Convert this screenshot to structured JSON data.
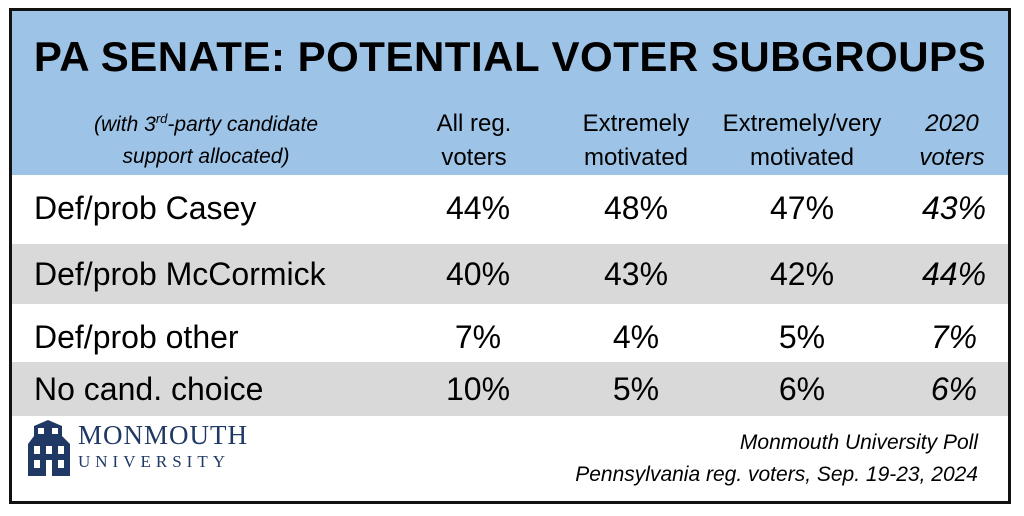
{
  "chart_data": {
    "type": "table",
    "title": "PA SENATE: POTENTIAL VOTER SUBGROUPS",
    "note": {
      "line1_pre": "(with 3",
      "line1_sup": "rd",
      "line1_post": "-party candidate",
      "line2": "support allocated)"
    },
    "columns": [
      {
        "line1": "All reg.",
        "line2": "voters"
      },
      {
        "line1": "Extremely",
        "line2": "motivated"
      },
      {
        "line1": "Extremely/very",
        "line2": "motivated"
      },
      {
        "line1": "2020",
        "line2": "voters"
      }
    ],
    "rows": [
      {
        "label": "Def/prob Casey",
        "values": [
          "44%",
          "48%",
          "47%",
          "43%"
        ]
      },
      {
        "label": "Def/prob McCormick",
        "values": [
          "40%",
          "43%",
          "42%",
          "44%"
        ]
      },
      {
        "label": "Def/prob other",
        "values": [
          "7%",
          "4%",
          "5%",
          "7%"
        ]
      },
      {
        "label": "No cand. choice",
        "values": [
          "10%",
          "5%",
          "6%",
          "6%"
        ]
      }
    ]
  },
  "source": {
    "line1": "Monmouth University Poll",
    "line2": "Pennsylvania reg. voters, Sep. 19-23, 2024"
  },
  "logo": {
    "name": "MONMOUTH",
    "sub": "UNIVERSITY"
  },
  "colors": {
    "header_bg": "#9dc3e6",
    "stripe_bg": "#d9d9d9",
    "logo_color": "#1f3864"
  }
}
